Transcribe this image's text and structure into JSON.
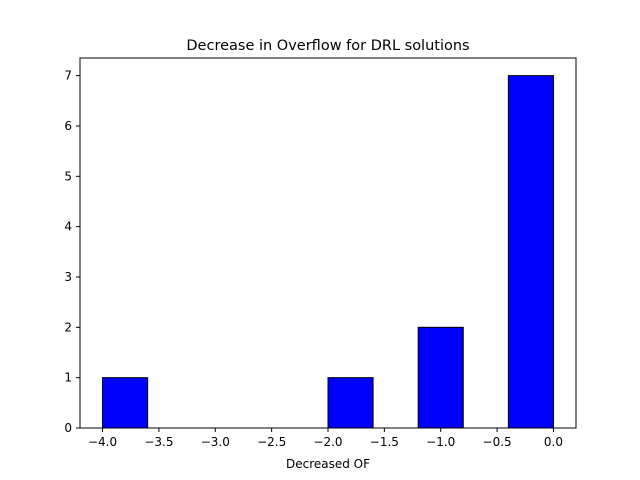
{
  "chart_data": {
    "type": "bar",
    "title": "Decrease in Overflow for DRL solutions",
    "xlabel": "Decreased OF",
    "ylabel": "",
    "xlim": [
      -4.2,
      0.2
    ],
    "ylim": [
      0,
      7.35
    ],
    "bins": [
      {
        "x0": -4.0,
        "x1": -3.6,
        "count": 1
      },
      {
        "x0": -3.6,
        "x1": -3.2,
        "count": 0
      },
      {
        "x0": -3.2,
        "x1": -2.8,
        "count": 0
      },
      {
        "x0": -2.8,
        "x1": -2.4,
        "count": 0
      },
      {
        "x0": -2.4,
        "x1": -2.0,
        "count": 0
      },
      {
        "x0": -2.0,
        "x1": -1.6,
        "count": 1
      },
      {
        "x0": -1.6,
        "x1": -1.2,
        "count": 0
      },
      {
        "x0": -1.2,
        "x1": -0.8,
        "count": 2
      },
      {
        "x0": -0.8,
        "x1": -0.4,
        "count": 0
      },
      {
        "x0": -0.4,
        "x1": 0.0,
        "count": 7
      }
    ],
    "xticks": [
      -4.0,
      -3.5,
      -3.0,
      -2.5,
      -2.0,
      -1.5,
      -1.0,
      -0.5,
      0.0
    ],
    "xtick_labels": [
      "−4.0",
      "−3.5",
      "−3.0",
      "−2.5",
      "−2.0",
      "−1.5",
      "−1.0",
      "−0.5",
      "0.0"
    ],
    "yticks": [
      0,
      1,
      2,
      3,
      4,
      5,
      6,
      7
    ],
    "ytick_labels": [
      "0",
      "1",
      "2",
      "3",
      "4",
      "5",
      "6",
      "7"
    ],
    "bar_color": "#0000ff",
    "edge_color": "#000000",
    "grid": false
  }
}
